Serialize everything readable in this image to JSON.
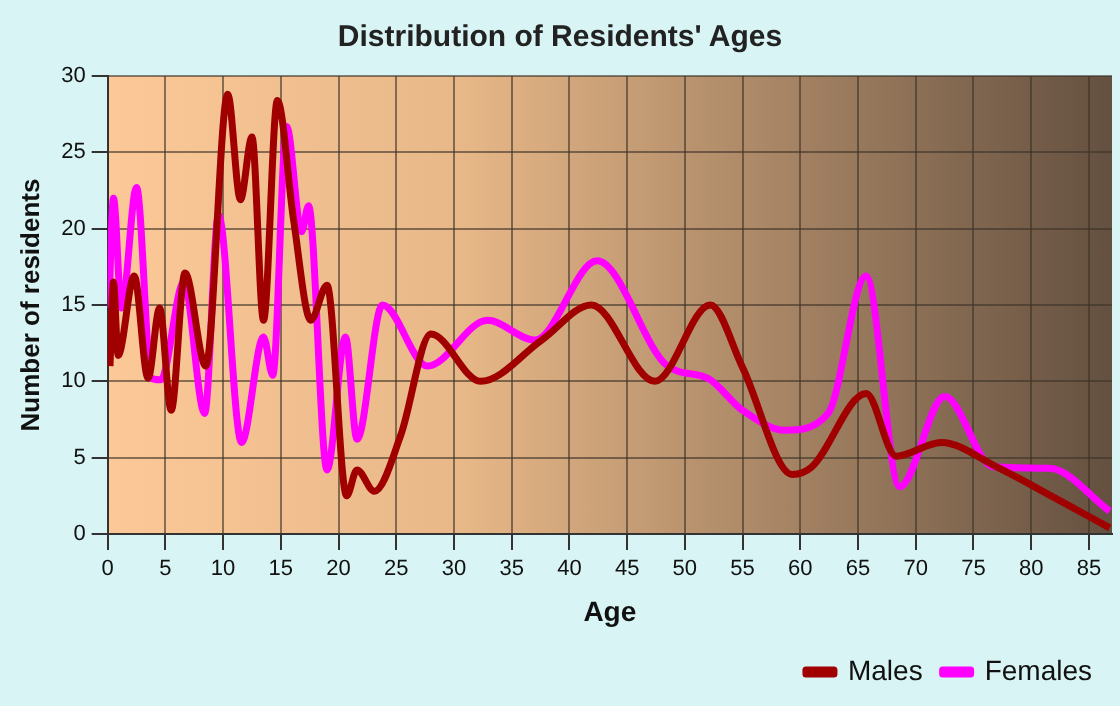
{
  "chart_data": {
    "type": "line",
    "title": "Distribution of Residents' Ages",
    "xlabel": "Age",
    "ylabel": "Number of residents",
    "xlim": [
      0,
      87
    ],
    "xticks": [
      0,
      5,
      10,
      15,
      20,
      25,
      30,
      35,
      40,
      45,
      50,
      55,
      60,
      65,
      70,
      75,
      80,
      85
    ],
    "ylim": [
      0,
      30
    ],
    "yticks": [
      0,
      5,
      10,
      15,
      20,
      25,
      30
    ],
    "grid": true,
    "legend": "bottom right",
    "marker": "none",
    "line_style": "solid",
    "series": [
      {
        "name": "Males",
        "color": "#a00000",
        "x": [
          0.2,
          0.5,
          0.9,
          2.3,
          3.5,
          4.5,
          5.5,
          6.7,
          8.5,
          10.4,
          11.5,
          12.5,
          13.5,
          14.7,
          16.1,
          17.6,
          19,
          20.7,
          21.6,
          23.1,
          25.4,
          28,
          32.3,
          37.6,
          41.9,
          47.4,
          52.2,
          55,
          59.3,
          61,
          65.7,
          68.3,
          72.2,
          77,
          82.2,
          86.8
        ],
        "values": [
          11,
          16.5,
          11.7,
          16.9,
          10.2,
          14.8,
          8.1,
          17.1,
          11,
          28.8,
          21.9,
          26,
          14,
          28.4,
          20.6,
          14,
          16.3,
          2.5,
          4.2,
          2.8,
          6.5,
          13.1,
          10,
          12.7,
          15,
          10,
          15,
          10.9,
          3.9,
          4.4,
          9.2,
          5.1,
          6,
          4.4,
          2.3,
          0.4
        ]
      },
      {
        "name": "Females",
        "color": "#ff00ff",
        "x": [
          0.1,
          0.5,
          1.2,
          2.5,
          3.8,
          4.6,
          6.6,
          8.4,
          9.6,
          11.6,
          13.5,
          14.3,
          15.5,
          16.8,
          17.4,
          19,
          20.6,
          21.6,
          23.8,
          27.7,
          32.9,
          37,
          42.4,
          48.5,
          52,
          55,
          58.7,
          62.4,
          65.7,
          68.6,
          72.5,
          76.7,
          81.6,
          86.8
        ],
        "values": [
          14.8,
          22,
          14.8,
          22.7,
          10.2,
          10.1,
          16.5,
          7.9,
          20.9,
          6,
          12.9,
          10.4,
          26.7,
          19.8,
          21.5,
          4.2,
          12.9,
          6.2,
          15,
          11,
          14,
          12.7,
          17.9,
          11,
          10.2,
          8.1,
          6.8,
          7.9,
          16.9,
          3.1,
          9,
          4.4,
          4.3,
          1.5
        ]
      }
    ]
  }
}
